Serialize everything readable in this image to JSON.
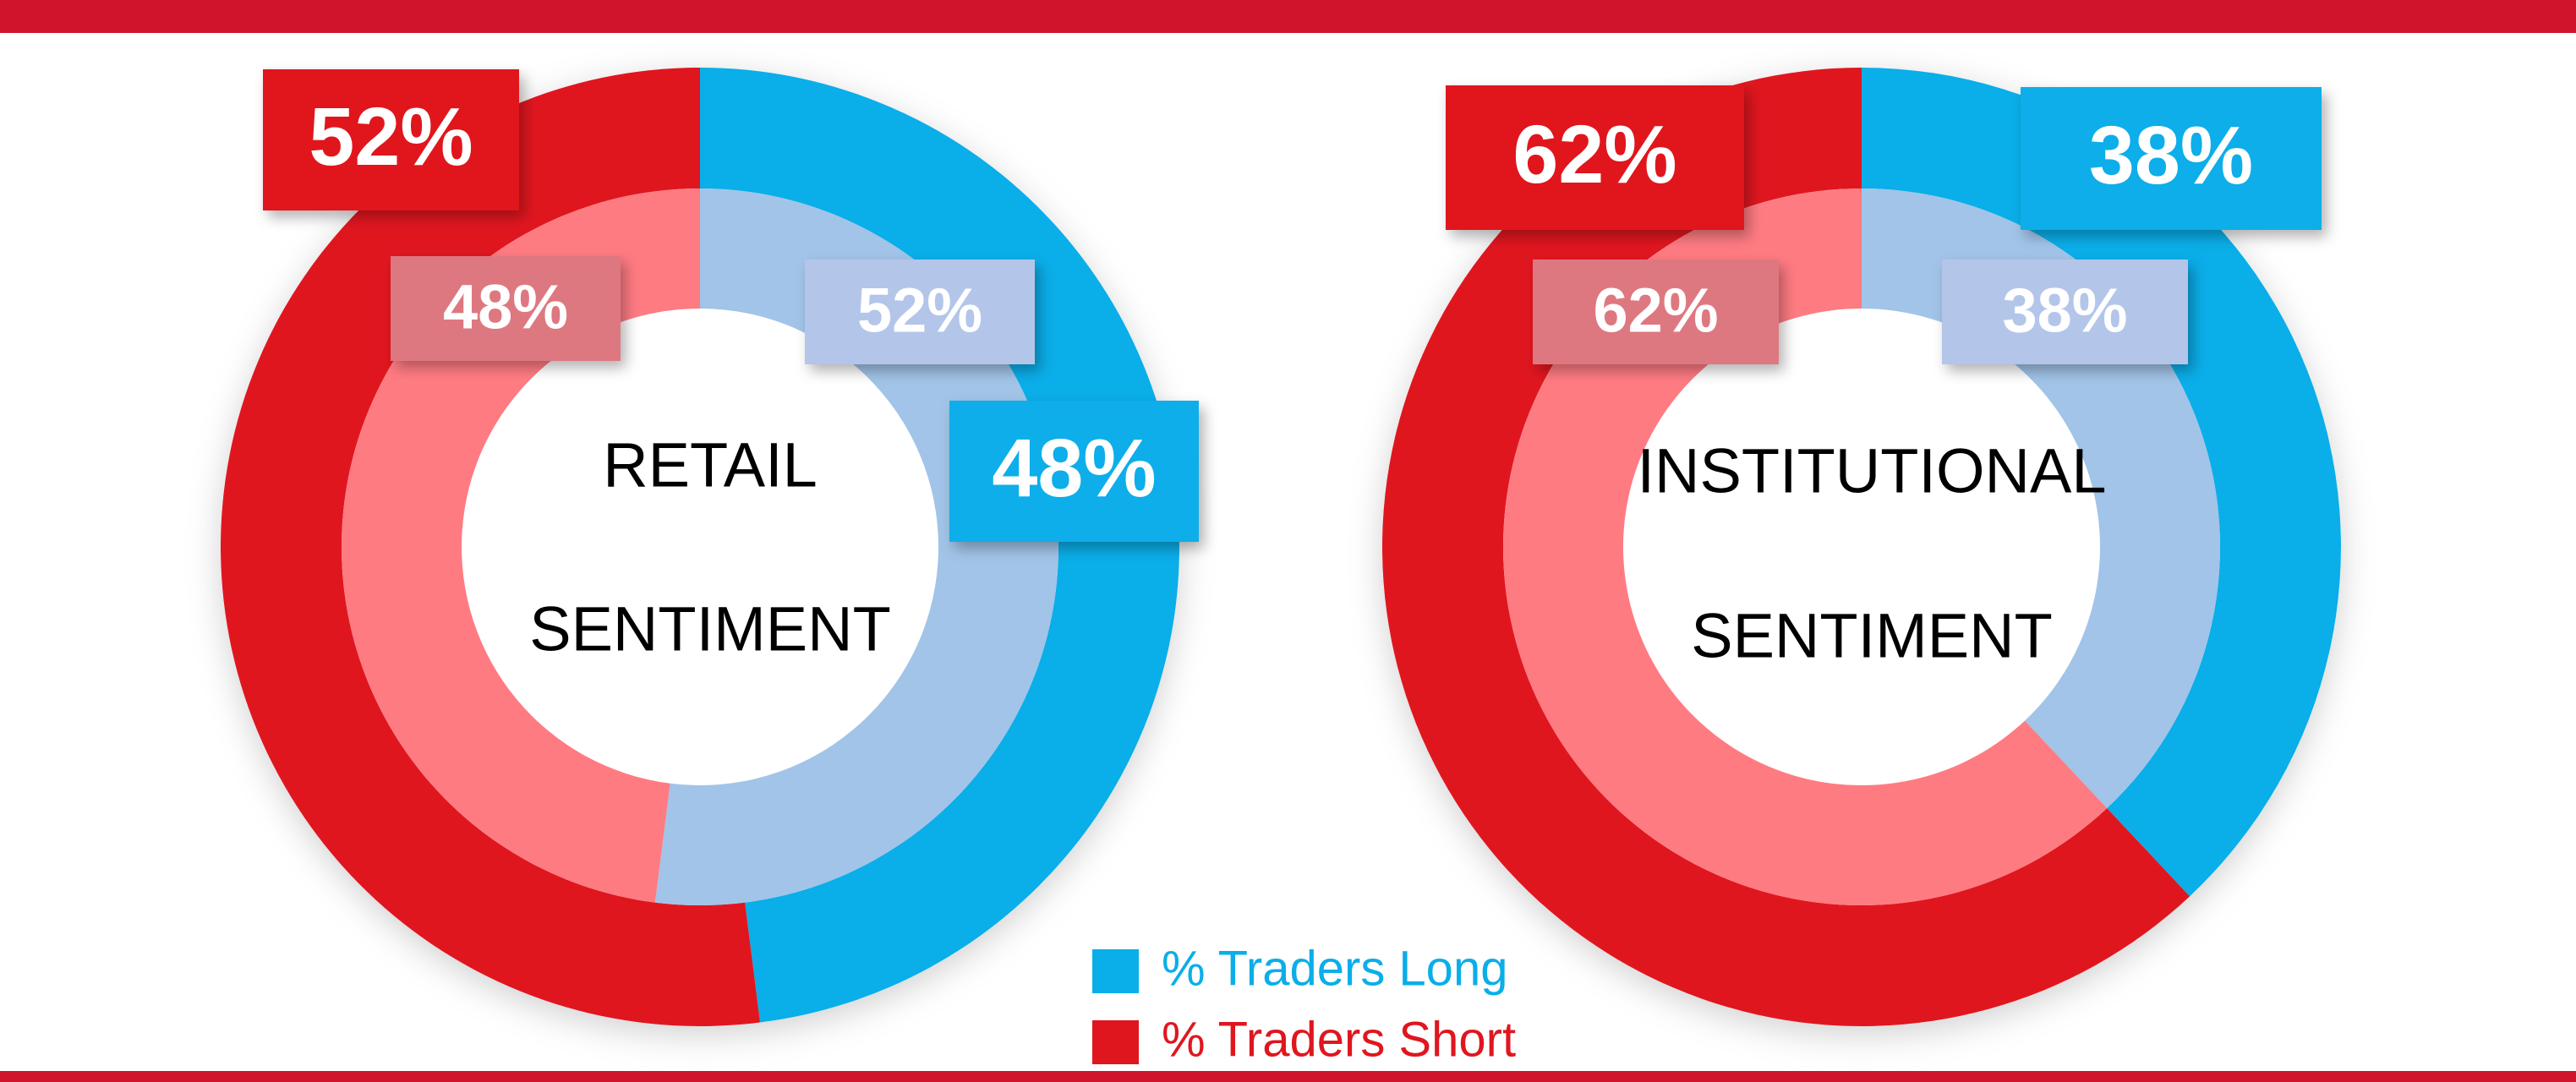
{
  "chart_data": [
    {
      "type": "donut",
      "title_lines": [
        "RETAIL",
        "SENTIMENT"
      ],
      "rings": [
        {
          "values": [
            48,
            52
          ],
          "value_labels": [
            "48%",
            "52%"
          ],
          "colors": [
            "#0aaee9",
            "#e0161f"
          ],
          "label_colors": [
            "#0aaee9",
            "#e0161f"
          ]
        },
        {
          "values": [
            52,
            48
          ],
          "value_labels": [
            "52%",
            "48%"
          ],
          "colors": [
            "#a1c4e8",
            "#ff7b82"
          ],
          "label_colors": [
            "#b3c6e9",
            "#de7880"
          ]
        }
      ]
    },
    {
      "type": "donut",
      "title_lines": [
        "INSTITUTIONAL",
        "SENTIMENT"
      ],
      "rings": [
        {
          "values": [
            38,
            62
          ],
          "value_labels": [
            "38%",
            "62%"
          ],
          "colors": [
            "#0aaee9",
            "#e0161f"
          ],
          "label_colors": [
            "#0aaee9",
            "#e0161f"
          ]
        },
        {
          "values": [
            38,
            62
          ],
          "value_labels": [
            "38%",
            "62%"
          ],
          "colors": [
            "#a1c4e8",
            "#ff7b82"
          ],
          "label_colors": [
            "#b3c6e9",
            "#de7880"
          ]
        }
      ]
    }
  ],
  "legend": {
    "labels": [
      "% Traders Long",
      "% Traders Short"
    ],
    "colors": [
      "#0aaee9",
      "#e0161f"
    ]
  }
}
